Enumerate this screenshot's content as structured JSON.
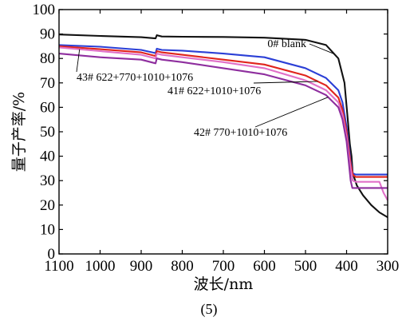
{
  "chart_data": {
    "type": "line",
    "xlabel": "波长/nm",
    "ylabel": "量子产率/%",
    "caption": "(5)",
    "xlim": [
      1100,
      300
    ],
    "ylim": [
      0,
      100
    ],
    "x_ticks": [
      1100,
      1000,
      900,
      800,
      700,
      600,
      500,
      400,
      300
    ],
    "y_ticks": [
      0,
      10,
      20,
      30,
      40,
      50,
      60,
      70,
      80,
      90,
      100
    ],
    "grid": false,
    "series": [
      {
        "name": "0# blank",
        "color": "#111111",
        "points": [
          [
            1100,
            89.8
          ],
          [
            1000,
            89.2
          ],
          [
            900,
            88.7
          ],
          [
            865,
            88.2
          ],
          [
            862,
            89.5
          ],
          [
            850,
            89.0
          ],
          [
            800,
            88.9
          ],
          [
            700,
            88.8
          ],
          [
            600,
            88.5
          ],
          [
            500,
            87.6
          ],
          [
            450,
            85.5
          ],
          [
            420,
            80
          ],
          [
            405,
            70
          ],
          [
            397,
            55
          ],
          [
            392,
            45
          ],
          [
            388,
            40
          ],
          [
            385,
            33
          ],
          [
            375,
            28
          ],
          [
            360,
            24
          ],
          [
            340,
            20
          ],
          [
            320,
            17
          ],
          [
            300,
            15
          ]
        ]
      },
      {
        "name": "",
        "color": "#2b3fd6",
        "points": [
          [
            1100,
            85.5
          ],
          [
            1000,
            84.8
          ],
          [
            900,
            83.5
          ],
          [
            865,
            82.2
          ],
          [
            862,
            84.0
          ],
          [
            850,
            83.5
          ],
          [
            800,
            83.2
          ],
          [
            700,
            82.0
          ],
          [
            600,
            80.5
          ],
          [
            500,
            76
          ],
          [
            450,
            72
          ],
          [
            420,
            67
          ],
          [
            410,
            62
          ],
          [
            400,
            52
          ],
          [
            395,
            45
          ],
          [
            390,
            38
          ],
          [
            385,
            33
          ],
          [
            378,
            32.5
          ],
          [
            300,
            32.5
          ]
        ]
      },
      {
        "name": "41# 622+1010+1076",
        "color": "#e0241c",
        "points": [
          [
            1100,
            85
          ],
          [
            1000,
            83.8
          ],
          [
            900,
            82.5
          ],
          [
            865,
            81.0
          ],
          [
            862,
            83.0
          ],
          [
            850,
            82.5
          ],
          [
            800,
            81.5
          ],
          [
            700,
            79.5
          ],
          [
            600,
            77.5
          ],
          [
            500,
            73
          ],
          [
            450,
            69
          ],
          [
            420,
            64
          ],
          [
            410,
            59
          ],
          [
            400,
            50
          ],
          [
            395,
            43
          ],
          [
            390,
            37
          ],
          [
            385,
            32.5
          ],
          [
            378,
            31.5
          ],
          [
            300,
            31.5
          ]
        ]
      },
      {
        "name": "43# 622+770+1010+1076",
        "color": "#e070c8",
        "points": [
          [
            1100,
            84.5
          ],
          [
            1000,
            83.0
          ],
          [
            900,
            81.5
          ],
          [
            865,
            80.0
          ],
          [
            862,
            82.0
          ],
          [
            850,
            81.5
          ],
          [
            800,
            80.5
          ],
          [
            700,
            78.5
          ],
          [
            600,
            76.0
          ],
          [
            500,
            71
          ],
          [
            450,
            67
          ],
          [
            420,
            62
          ],
          [
            410,
            57
          ],
          [
            400,
            48
          ],
          [
            395,
            41
          ],
          [
            390,
            35
          ],
          [
            385,
            30
          ],
          [
            378,
            29.5
          ],
          [
            320,
            29.5
          ],
          [
            310,
            25
          ],
          [
            300,
            22
          ]
        ]
      },
      {
        "name": "42# 770+1010+1076",
        "color": "#8e2e9e",
        "points": [
          [
            1100,
            82
          ],
          [
            1000,
            80.5
          ],
          [
            900,
            79.5
          ],
          [
            865,
            78.0
          ],
          [
            862,
            80.0
          ],
          [
            850,
            79.5
          ],
          [
            800,
            78.5
          ],
          [
            700,
            76.0
          ],
          [
            600,
            73.5
          ],
          [
            500,
            69
          ],
          [
            450,
            65
          ],
          [
            420,
            60
          ],
          [
            410,
            55
          ],
          [
            400,
            46
          ],
          [
            395,
            38
          ],
          [
            390,
            30
          ],
          [
            386,
            27
          ],
          [
            300,
            27
          ]
        ]
      }
    ],
    "annotations": [
      {
        "text": "0# blank",
        "series": 0
      },
      {
        "text": "43# 622+770+1010+1076",
        "series": 3
      },
      {
        "text": "41# 622+1010+1076",
        "series": 2
      },
      {
        "text": "42# 770+1010+1076",
        "series": 4
      }
    ]
  }
}
